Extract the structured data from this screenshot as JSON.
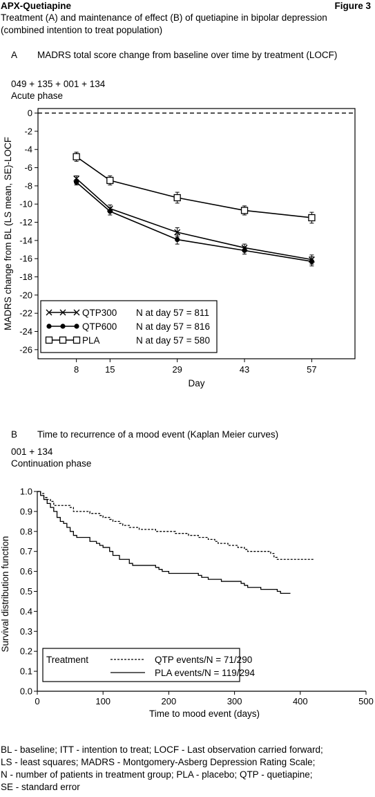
{
  "header": {
    "left": "APX-Quetiapine",
    "right": "Figure 3",
    "caption_line1": "Treatment (A) and maintenance of effect (B) of quetiapine in bipolar depression",
    "caption_line2": "(combined intention to treat population)"
  },
  "panel_a": {
    "letter": "A",
    "heading": "MADRS total score change from baseline over time by treatment (LOCF)",
    "studies": "049 + 135 + 001 + 134",
    "phase": "Acute phase"
  },
  "panel_b": {
    "letter": "B",
    "heading": "Time to recurrence of a mood event (Kaplan Meier curves)",
    "studies": "001 + 134",
    "phase": "Continuation phase"
  },
  "footnotes": [
    "BL - baseline; ITT - intention to treat; LOCF - Last observation carried forward;",
    "LS - least squares; MADRS - Montgomery-Asberg Depression Rating Scale;",
    "N - number of patients in treatment group; PLA - placebo; QTP - quetiapine;",
    "SE - standard error"
  ],
  "chart_data": [
    {
      "type": "line",
      "ylabel": "MADRS change from BL (LS mean, SE)-LOCF",
      "xlabel": "Day",
      "x": [
        8,
        15,
        29,
        43,
        57
      ],
      "xticks": [
        "8",
        "15",
        "29",
        "43",
        "57"
      ],
      "xlim": [
        0,
        66
      ],
      "ylim": [
        -27,
        0.5
      ],
      "yticks": [
        "0",
        "-2",
        "-4",
        "-6",
        "-8",
        "-10",
        "-12",
        "-14",
        "-16",
        "-18",
        "-20",
        "-22",
        "-24",
        "-26"
      ],
      "reference_line": 0,
      "legend_position": "bottom-left",
      "series": [
        {
          "name": "QTP300",
          "marker": "x",
          "n_label": "N at day 57 = 811",
          "values": [
            -7.2,
            -10.5,
            -13.1,
            -14.8,
            -16.1
          ],
          "se": [
            0.3,
            0.4,
            0.5,
            0.4,
            0.5
          ]
        },
        {
          "name": "QTP600",
          "marker": "dot",
          "n_label": "N at day 57 = 816",
          "values": [
            -7.6,
            -10.8,
            -13.9,
            -15.1,
            -16.3
          ],
          "se": [
            0.3,
            0.4,
            0.5,
            0.4,
            0.5
          ]
        },
        {
          "name": "PLA",
          "marker": "square",
          "n_label": "N at day 57 = 580",
          "values": [
            -4.8,
            -7.4,
            -9.3,
            -10.7,
            -11.5
          ],
          "se": [
            0.5,
            0.5,
            0.6,
            0.5,
            0.6
          ]
        }
      ]
    },
    {
      "type": "line",
      "ylabel": "Survival distribution function",
      "xlabel": "Time to mood event (days)",
      "xlim": [
        0,
        500
      ],
      "xticks": [
        "0",
        "100",
        "200",
        "300",
        "400",
        "500"
      ],
      "ylim": [
        0,
        1
      ],
      "yticks": [
        "0.0",
        "0.1",
        "0.2",
        "0.3",
        "0.4",
        "0.5",
        "0.6",
        "0.7",
        "0.8",
        "0.9",
        "1.0"
      ],
      "legend_position": "bottom-left",
      "legend_title": "Treatment",
      "series": [
        {
          "name": "QTP events/N = 71/290",
          "style": "dashed",
          "points": [
            [
              0,
              1.0
            ],
            [
              5,
              0.99
            ],
            [
              10,
              0.97
            ],
            [
              15,
              0.96
            ],
            [
              20,
              0.95
            ],
            [
              25,
              0.93
            ],
            [
              50,
              0.92
            ],
            [
              55,
              0.9
            ],
            [
              80,
              0.89
            ],
            [
              95,
              0.88
            ],
            [
              100,
              0.87
            ],
            [
              110,
              0.86
            ],
            [
              115,
              0.85
            ],
            [
              125,
              0.84
            ],
            [
              130,
              0.83
            ],
            [
              140,
              0.82
            ],
            [
              150,
              0.82
            ],
            [
              155,
              0.81
            ],
            [
              175,
              0.81
            ],
            [
              180,
              0.8
            ],
            [
              205,
              0.8
            ],
            [
              210,
              0.79
            ],
            [
              230,
              0.78
            ],
            [
              245,
              0.77
            ],
            [
              260,
              0.76
            ],
            [
              270,
              0.75
            ],
            [
              275,
              0.74
            ],
            [
              290,
              0.73
            ],
            [
              300,
              0.73
            ],
            [
              305,
              0.72
            ],
            [
              315,
              0.71
            ],
            [
              320,
              0.7
            ],
            [
              350,
              0.7
            ],
            [
              355,
              0.69
            ],
            [
              360,
              0.67
            ],
            [
              365,
              0.66
            ],
            [
              420,
              0.66
            ]
          ]
        },
        {
          "name": "PLA events/N = 119/294",
          "style": "solid",
          "points": [
            [
              0,
              1.0
            ],
            [
              5,
              0.98
            ],
            [
              10,
              0.96
            ],
            [
              15,
              0.94
            ],
            [
              20,
              0.92
            ],
            [
              25,
              0.9
            ],
            [
              30,
              0.87
            ],
            [
              35,
              0.85
            ],
            [
              40,
              0.84
            ],
            [
              45,
              0.82
            ],
            [
              50,
              0.8
            ],
            [
              55,
              0.78
            ],
            [
              60,
              0.77
            ],
            [
              75,
              0.77
            ],
            [
              80,
              0.75
            ],
            [
              90,
              0.74
            ],
            [
              95,
              0.73
            ],
            [
              100,
              0.72
            ],
            [
              110,
              0.7
            ],
            [
              115,
              0.68
            ],
            [
              125,
              0.66
            ],
            [
              140,
              0.64
            ],
            [
              145,
              0.63
            ],
            [
              175,
              0.63
            ],
            [
              180,
              0.62
            ],
            [
              185,
              0.61
            ],
            [
              190,
              0.6
            ],
            [
              200,
              0.59
            ],
            [
              240,
              0.59
            ],
            [
              245,
              0.58
            ],
            [
              250,
              0.57
            ],
            [
              260,
              0.56
            ],
            [
              280,
              0.55
            ],
            [
              310,
              0.54
            ],
            [
              315,
              0.53
            ],
            [
              320,
              0.52
            ],
            [
              340,
              0.51
            ],
            [
              365,
              0.5
            ],
            [
              370,
              0.49
            ],
            [
              385,
              0.49
            ]
          ]
        }
      ]
    }
  ]
}
